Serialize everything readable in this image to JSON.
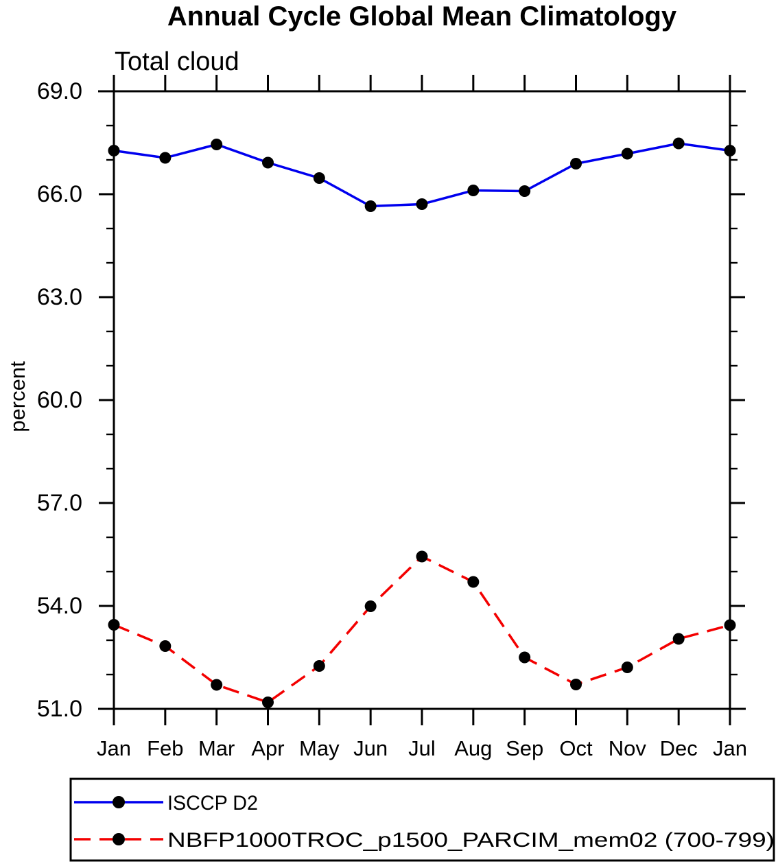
{
  "chart_data": {
    "type": "line",
    "title": "Annual Cycle Global Mean Climatology",
    "subtitle": "Total cloud",
    "ylabel": "percent",
    "xlabel": "",
    "categories": [
      "Jan",
      "Feb",
      "Mar",
      "Apr",
      "May",
      "Jun",
      "Jul",
      "Aug",
      "Sep",
      "Oct",
      "Nov",
      "Dec",
      "Jan"
    ],
    "series": [
      {
        "name": "ISCCP D2",
        "color": "#0000ee",
        "line_style": "solid",
        "marker": "filled-circle",
        "marker_color": "#000000",
        "values": [
          67.27,
          67.06,
          67.45,
          66.92,
          66.47,
          65.65,
          65.71,
          66.11,
          66.09,
          66.89,
          67.18,
          67.48,
          67.27
        ]
      },
      {
        "name": "NBFP1000TROC_p1500_PARCIM_mem02 (700-799)",
        "color": "#f30000",
        "line_style": "dashed",
        "marker": "filled-circle",
        "marker_color": "#000000",
        "values": [
          53.45,
          52.83,
          51.7,
          51.19,
          52.25,
          53.99,
          55.44,
          54.7,
          52.5,
          51.71,
          52.21,
          53.04,
          53.44
        ]
      }
    ],
    "ylim": [
      51.0,
      69.0
    ],
    "ytick_major": [
      51,
      54,
      57,
      60,
      63,
      66,
      69
    ],
    "ytick_labels": [
      "51.0",
      "54.0",
      "57.0",
      "60.0",
      "63.0",
      "66.0",
      "69.0"
    ],
    "ytick_minor_step": 1,
    "grid": false,
    "axis_color": "#000000",
    "legend_position": "bottom-box"
  }
}
